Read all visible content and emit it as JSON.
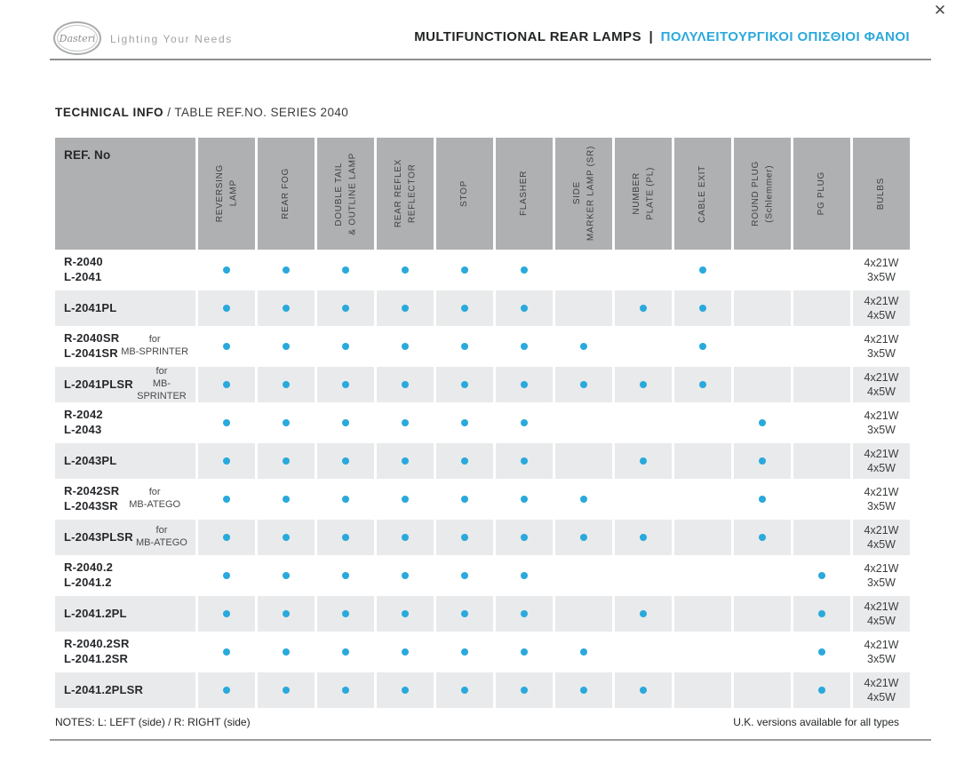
{
  "header": {
    "logo_text": "Dasteri",
    "tagline": "Lighting Your Needs",
    "title_en": "MULTIFUNCTIONAL REAR LAMPS",
    "title_sep": "|",
    "title_gr": "ΠΟΛΥΛΕΙΤΟΥΡΓΙΚΟΙ ΟΠΙΣΘΙΟΙ ΦΑΝΟΙ",
    "close_glyph": "✕"
  },
  "section": {
    "heading_bold": "TECHNICAL INFO",
    "heading_rest": " / TABLE REF.NO. SERIES 2040"
  },
  "table": {
    "ref_header": "REF. No",
    "columns": [
      "REVERSING\nLAMP",
      "REAR FOG",
      "DOUBLE TAIL\n& OUTLINE LAMP",
      "REAR REFLEX\nREFLECTOR",
      "STOP",
      "FLASHER",
      "SIDE\nMARKER LAMP (SR)",
      "NUMBER\nPLATE (PL)",
      "CABLE  EXIT",
      "ROUND PLUG\n(Schlemmer)",
      "PG PLUG",
      "BULBS"
    ],
    "rows": [
      {
        "refs": "R-2040\nL-2041",
        "note": "",
        "features": [
          1,
          1,
          1,
          1,
          1,
          1,
          0,
          0,
          1,
          0,
          0
        ],
        "bulbs": "4x21W\n3x5W",
        "shaded": false
      },
      {
        "refs": "L-2041PL",
        "note": "",
        "features": [
          1,
          1,
          1,
          1,
          1,
          1,
          0,
          1,
          1,
          0,
          0
        ],
        "bulbs": "4x21W\n4x5W",
        "shaded": true
      },
      {
        "refs": "R-2040SR\nL-2041SR",
        "note": "for\nMB-SPRINTER",
        "features": [
          1,
          1,
          1,
          1,
          1,
          1,
          1,
          0,
          1,
          0,
          0
        ],
        "bulbs": "4x21W\n3x5W",
        "shaded": false
      },
      {
        "refs": "L-2041PLSR",
        "note": "for\nMB-SPRINTER",
        "features": [
          1,
          1,
          1,
          1,
          1,
          1,
          1,
          1,
          1,
          0,
          0
        ],
        "bulbs": "4x21W\n4x5W",
        "shaded": true
      },
      {
        "refs": "R-2042\nL-2043",
        "note": "",
        "features": [
          1,
          1,
          1,
          1,
          1,
          1,
          0,
          0,
          0,
          1,
          0
        ],
        "bulbs": "4x21W\n3x5W",
        "shaded": false
      },
      {
        "refs": "L-2043PL",
        "note": "",
        "features": [
          1,
          1,
          1,
          1,
          1,
          1,
          0,
          1,
          0,
          1,
          0
        ],
        "bulbs": "4x21W\n4x5W",
        "shaded": true
      },
      {
        "refs": "R-2042SR\nL-2043SR",
        "note": "for\nMB-ATEGO",
        "features": [
          1,
          1,
          1,
          1,
          1,
          1,
          1,
          0,
          0,
          1,
          0
        ],
        "bulbs": "4x21W\n3x5W",
        "shaded": false
      },
      {
        "refs": "L-2043PLSR",
        "note": "for\nMB-ATEGO",
        "features": [
          1,
          1,
          1,
          1,
          1,
          1,
          1,
          1,
          0,
          1,
          0
        ],
        "bulbs": "4x21W\n4x5W",
        "shaded": true
      },
      {
        "refs": "R-2040.2\nL-2041.2",
        "note": "",
        "features": [
          1,
          1,
          1,
          1,
          1,
          1,
          0,
          0,
          0,
          0,
          1
        ],
        "bulbs": "4x21W\n3x5W",
        "shaded": false
      },
      {
        "refs": "L-2041.2PL",
        "note": "",
        "features": [
          1,
          1,
          1,
          1,
          1,
          1,
          0,
          1,
          0,
          0,
          1
        ],
        "bulbs": "4x21W\n4x5W",
        "shaded": true
      },
      {
        "refs": "R-2040.2SR\nL-2041.2SR",
        "note": "",
        "features": [
          1,
          1,
          1,
          1,
          1,
          1,
          1,
          0,
          0,
          0,
          1
        ],
        "bulbs": "4x21W\n3x5W",
        "shaded": false
      },
      {
        "refs": "L-2041.2PLSR",
        "note": "",
        "features": [
          1,
          1,
          1,
          1,
          1,
          1,
          1,
          1,
          0,
          0,
          1
        ],
        "bulbs": "4x21W\n4x5W",
        "shaded": true
      }
    ]
  },
  "footer": {
    "notes": "NOTES: L: LEFT (side) / R: RIGHT (side)",
    "right_note": "U.K. versions available for all types"
  },
  "colors": {
    "dot_accent": "#29a9dc",
    "title_greek": "#2ba9dc",
    "header_gray": "#aeb0b2",
    "row_shade": "#e9eaeb"
  }
}
